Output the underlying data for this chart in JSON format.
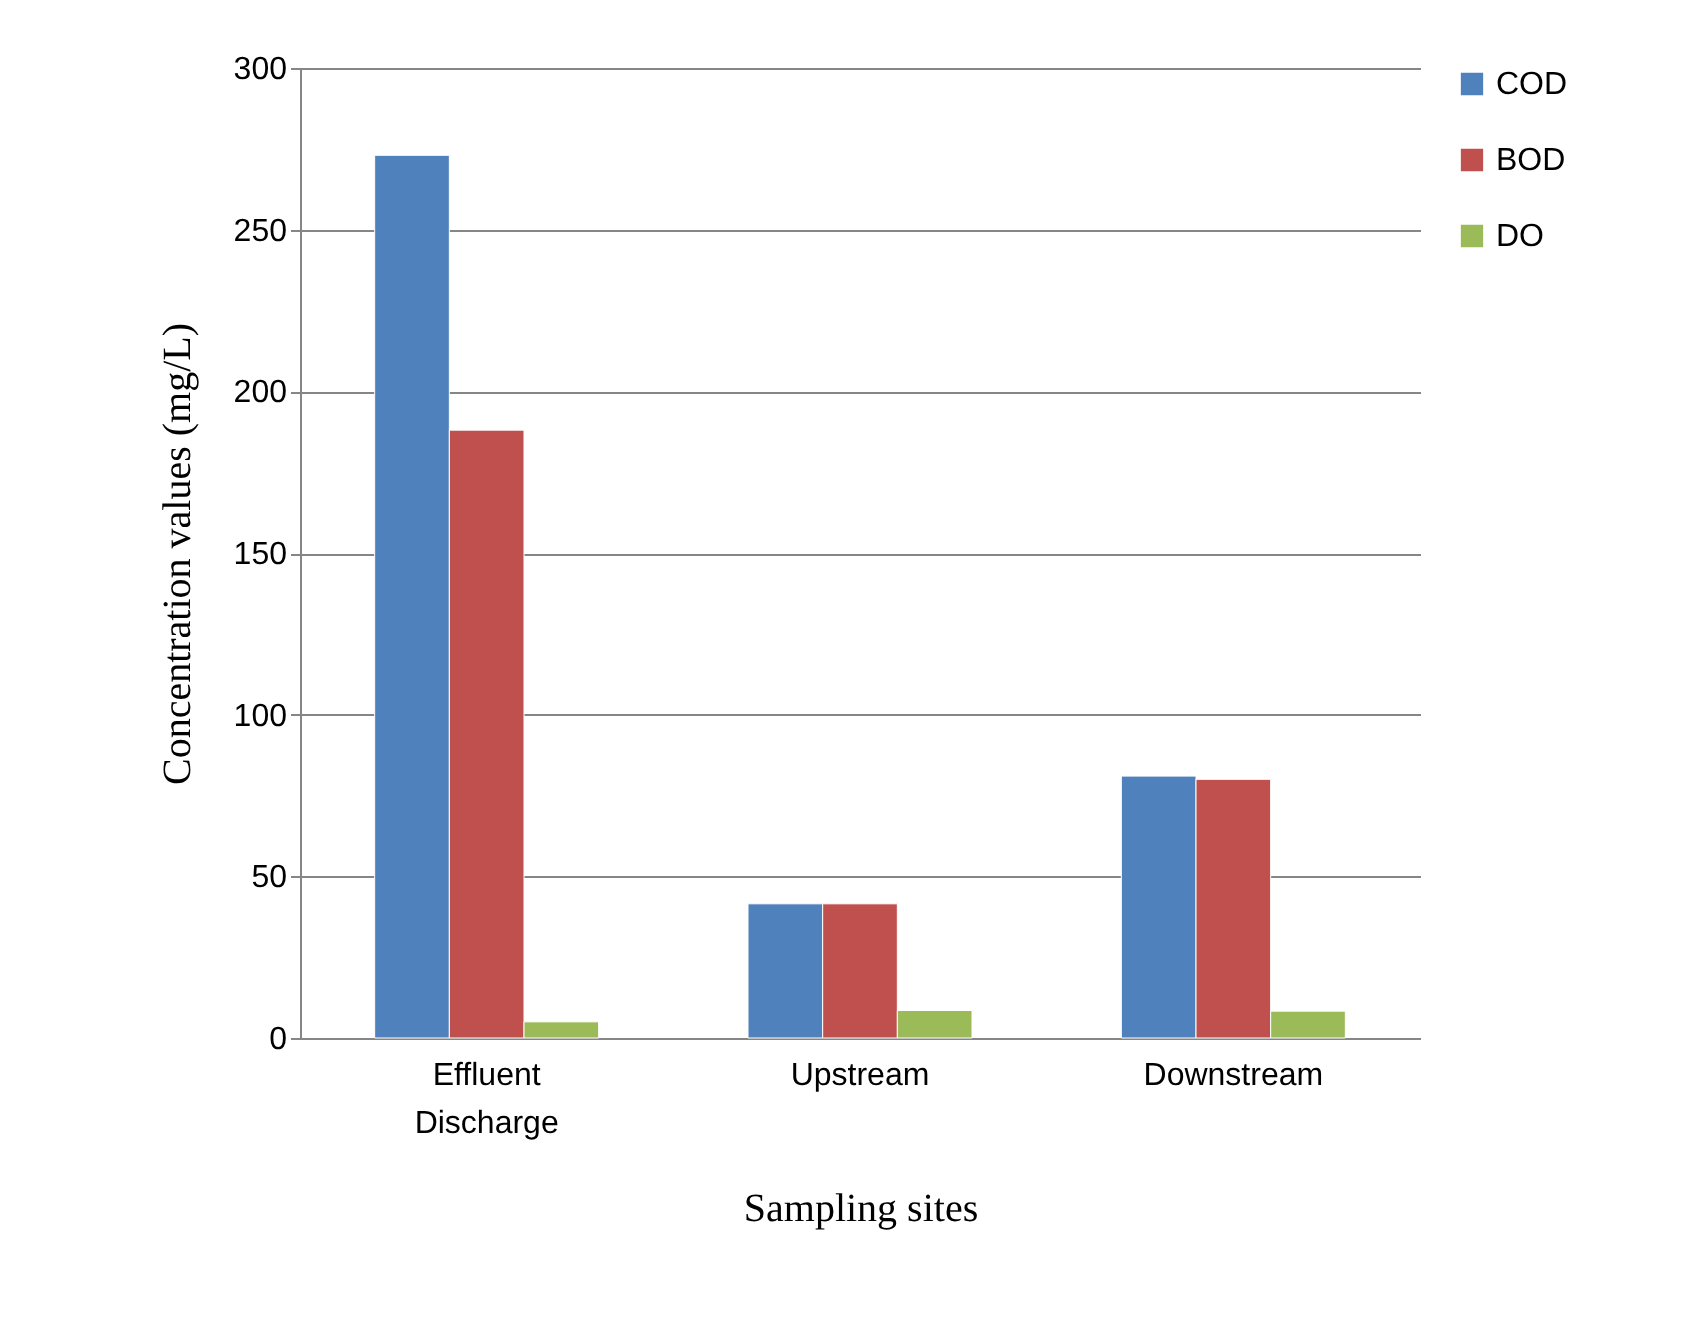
{
  "chart_data": {
    "type": "bar",
    "xlabel": "Sampling sites",
    "ylabel": "Concentration values (mg/L)",
    "categories": [
      "Effluent Discharge",
      "Upstream",
      "Downstream"
    ],
    "series": [
      {
        "name": "COD",
        "color": "#4f81bd",
        "values": [
          273,
          41.5,
          81
        ]
      },
      {
        "name": "BOD",
        "color": "#c0504d",
        "values": [
          188,
          41.5,
          80
        ]
      },
      {
        "name": "DO",
        "color": "#9bbb59",
        "values": [
          5,
          8.5,
          8.3
        ]
      }
    ],
    "ylim": [
      0,
      300
    ],
    "yticks": [
      0,
      50,
      100,
      150,
      200,
      250,
      300
    ],
    "grid": "y",
    "legend": "right"
  }
}
